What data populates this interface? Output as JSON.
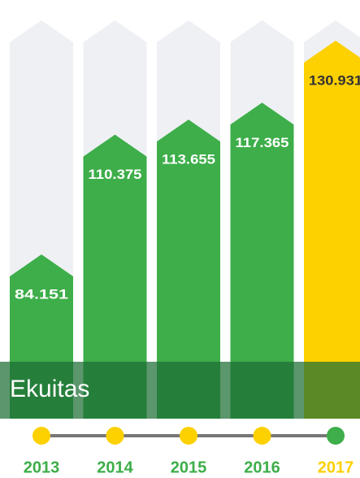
{
  "chart_data": {
    "type": "bar",
    "title": "Ekuitas",
    "categories": [
      "2013",
      "2014",
      "2015",
      "2016",
      "2017"
    ],
    "values": [
      84151,
      110375,
      113655,
      117365,
      130931
    ],
    "value_labels": [
      "84.151",
      "110.375",
      "113.655",
      "117.365",
      "130.931"
    ],
    "colors": [
      "#3dae49",
      "#3dae49",
      "#3dae49",
      "#3dae49",
      "#fdd000"
    ]
  }
}
